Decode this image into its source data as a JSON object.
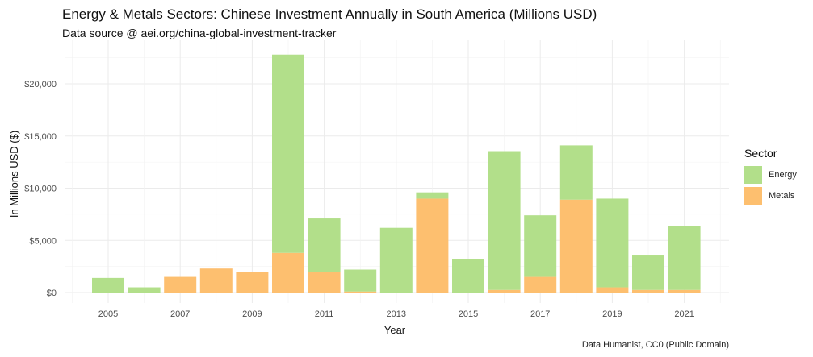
{
  "chart_data": {
    "type": "bar",
    "stacked": true,
    "title": "Energy & Metals Sectors: Chinese Investment Annually in South America (Millions USD)",
    "subtitle": "Data source @ aei.org/china-global-investment-tracker",
    "xlabel": "Year",
    "ylabel": "In Millions USD ($)",
    "caption": "Data Humanist, CC0 (Public Domain)",
    "categories": [
      2005,
      2006,
      2007,
      2008,
      2009,
      2010,
      2011,
      2012,
      2013,
      2014,
      2015,
      2016,
      2017,
      2018,
      2019,
      2020,
      2021
    ],
    "x_tick_labels": [
      "2005",
      "2007",
      "2009",
      "2011",
      "2013",
      "2015",
      "2017",
      "2019",
      "2021"
    ],
    "y_ticks": [
      0,
      5000,
      10000,
      15000,
      20000
    ],
    "y_tick_labels": [
      "$0",
      "$5,000",
      "$10,000",
      "$15,000",
      "$20,000"
    ],
    "ylim": [
      0,
      23000
    ],
    "grid": true,
    "legend": {
      "title": "Sector",
      "position": "right"
    },
    "series": [
      {
        "name": "Metals",
        "color": "#fdbf6f",
        "values": [
          0,
          0,
          1500,
          2300,
          2000,
          3800,
          2000,
          100,
          0,
          9000,
          0,
          250,
          1500,
          8900,
          500,
          250,
          250
        ]
      },
      {
        "name": "Energy",
        "color": "#b2df8a",
        "values": [
          1400,
          500,
          0,
          0,
          0,
          19000,
          5100,
          2100,
          6200,
          600,
          3200,
          13300,
          5900,
          5200,
          8500,
          3300,
          6100
        ]
      }
    ],
    "legend_order": [
      "Energy",
      "Metals"
    ]
  }
}
